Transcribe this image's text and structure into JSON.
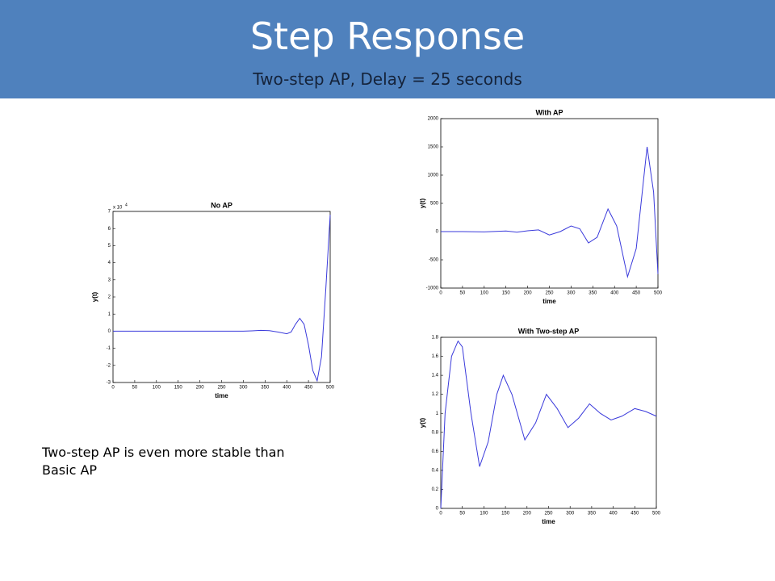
{
  "header": {
    "title": "Step Response",
    "subtitle": "Two-step AP, Delay = 25 seconds"
  },
  "note": "Two-step AP is even more stable than Basic AP",
  "chart_data": [
    {
      "type": "line",
      "title": "No AP",
      "x_label": "time",
      "y_label": "y(t)",
      "y_multiplier": "x 10",
      "y_exponent": "4",
      "series": [
        {
          "name": "y(t)",
          "color": "#3a3adb",
          "x": [
            0,
            50,
            100,
            150,
            200,
            250,
            300,
            320,
            340,
            360,
            380,
            400,
            410,
            420,
            430,
            440,
            450,
            460,
            470,
            480,
            490,
            500
          ],
          "values": [
            0,
            0,
            0,
            0,
            0,
            0,
            0,
            0.02,
            0.05,
            0.03,
            -0.05,
            -0.15,
            -0.05,
            0.4,
            0.75,
            0.4,
            -0.8,
            -2.3,
            -2.9,
            -1.5,
            2.5,
            6.8
          ]
        }
      ],
      "xlim": [
        0,
        500
      ],
      "xticks": [
        0,
        50,
        100,
        150,
        200,
        250,
        300,
        350,
        400,
        450,
        500
      ],
      "ylim": [
        -3,
        7
      ],
      "yticks": [
        -3,
        -2,
        -1,
        0,
        1,
        2,
        3,
        4,
        5,
        6,
        7
      ]
    },
    {
      "type": "line",
      "title": "With AP",
      "x_label": "time",
      "y_label": "y(t)",
      "series": [
        {
          "name": "y(t)",
          "color": "#3a3adb",
          "x": [
            0,
            50,
            100,
            150,
            175,
            200,
            225,
            250,
            275,
            300,
            320,
            340,
            360,
            385,
            405,
            430,
            450,
            475,
            490,
            500
          ],
          "values": [
            0,
            0,
            -5,
            10,
            -10,
            15,
            30,
            -60,
            0,
            100,
            50,
            -200,
            -100,
            400,
            100,
            -800,
            -300,
            1500,
            700,
            -750
          ]
        }
      ],
      "xlim": [
        0,
        500
      ],
      "xticks": [
        0,
        50,
        100,
        150,
        200,
        250,
        300,
        350,
        400,
        450,
        500
      ],
      "ylim": [
        -1000,
        2000
      ],
      "yticks": [
        -1000,
        -500,
        0,
        500,
        1000,
        1500,
        2000
      ]
    },
    {
      "type": "line",
      "title": "With Two-step AP",
      "x_label": "time",
      "y_label": "y(t)",
      "series": [
        {
          "name": "y(t)",
          "color": "#3a3adb",
          "x": [
            0,
            10,
            25,
            40,
            50,
            70,
            90,
            110,
            130,
            145,
            165,
            195,
            220,
            245,
            270,
            295,
            320,
            345,
            370,
            395,
            420,
            450,
            475,
            500
          ],
          "values": [
            0,
            1.0,
            1.6,
            1.76,
            1.7,
            1.0,
            0.44,
            0.7,
            1.2,
            1.4,
            1.2,
            0.72,
            0.9,
            1.2,
            1.05,
            0.85,
            0.95,
            1.1,
            1.0,
            0.93,
            0.97,
            1.05,
            1.02,
            0.97
          ]
        }
      ],
      "xlim": [
        0,
        500
      ],
      "xticks": [
        0,
        50,
        100,
        150,
        200,
        250,
        300,
        350,
        400,
        450,
        500
      ],
      "ylim": [
        0,
        1.8
      ],
      "yticks": [
        0,
        0.2,
        0.4,
        0.6,
        0.8,
        1,
        1.2,
        1.4,
        1.6,
        1.8
      ]
    }
  ]
}
